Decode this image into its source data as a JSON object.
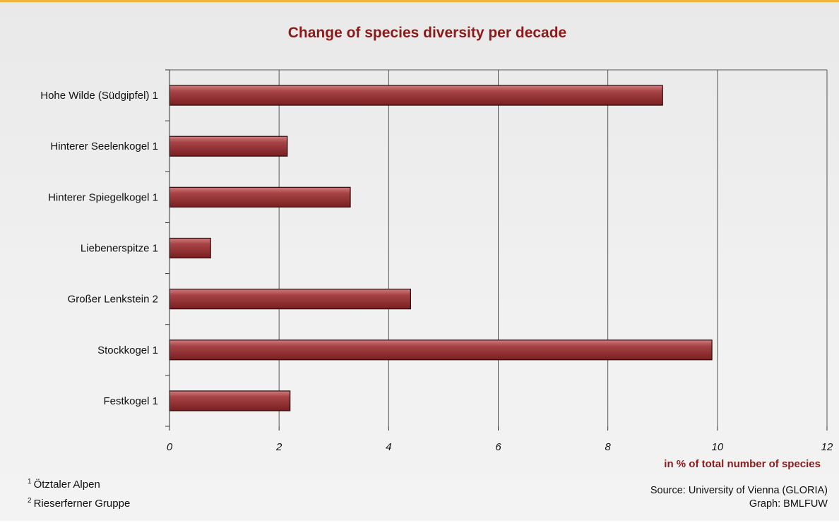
{
  "chart_data": {
    "type": "bar",
    "orientation": "horizontal",
    "title": "Change of species diversity per decade",
    "categories": [
      "Hohe Wilde (Südgipfel) 1",
      "Hinterer Seelenkogel 1",
      "Hinterer Spiegelkogel 1",
      "Liebenerspitze 1",
      "Großer Lenkstein 2",
      "Stockkogel 1",
      "Festkogel 1"
    ],
    "values": [
      9.0,
      2.15,
      3.3,
      0.75,
      4.4,
      9.9,
      2.2
    ],
    "xlabel": "in % of total number of species",
    "ylabel": "",
    "xlim": [
      0,
      12
    ],
    "x_ticks": [
      "0",
      "2",
      "4",
      "6",
      "8",
      "10",
      "12"
    ],
    "grid": true,
    "bar_color": "#9e3a3c"
  },
  "footnotes": [
    {
      "marker": "1",
      "text": "Ötztaler Alpen"
    },
    {
      "marker": "2",
      "text": "Rieserferner Gruppe"
    }
  ],
  "source": "Source: University of Vienna (GLORIA)",
  "graph_credit": "Graph: BMLFUW"
}
